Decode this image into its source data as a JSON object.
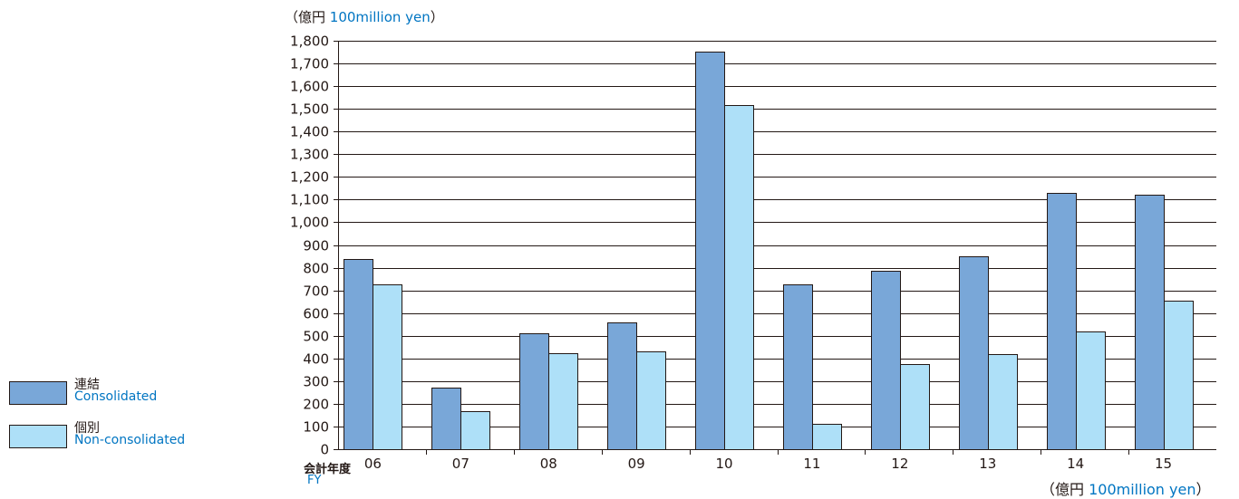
{
  "unit_label": {
    "ja": "（億円",
    "en": "100million yen",
    "close": "）"
  },
  "fy_label": {
    "ja": "会計年度",
    "en": "FY"
  },
  "colors": {
    "consolidated": "#79a7d8",
    "non_consolidated": "#aee0f8",
    "axis": "#231815",
    "accent_text": "#0075c2"
  },
  "legend": [
    {
      "ja": "連結",
      "en": "Consolidated"
    },
    {
      "ja": "個別",
      "en": "Non-consolidated"
    }
  ],
  "chart_data": {
    "type": "bar",
    "title": "",
    "xlabel": "会計年度 FY",
    "ylabel": "（億円 100million yen）",
    "ylim": [
      0,
      1800
    ],
    "yticks": [
      0,
      100,
      200,
      300,
      400,
      500,
      600,
      700,
      800,
      900,
      1000,
      1100,
      1200,
      1300,
      1400,
      1500,
      1600,
      1700,
      1800
    ],
    "grid": true,
    "legend_position": "left",
    "categories": [
      "06",
      "07",
      "08",
      "09",
      "10",
      "11",
      "12",
      "13",
      "14",
      "15"
    ],
    "series": [
      {
        "name": "連結 Consolidated",
        "values": [
          840,
          272,
          510,
          560,
          1752,
          725,
          787,
          850,
          1130,
          1120
        ]
      },
      {
        "name": "個別 Non-consolidated",
        "values": [
          725,
          168,
          425,
          432,
          1515,
          112,
          377,
          420,
          520,
          653
        ]
      }
    ]
  }
}
